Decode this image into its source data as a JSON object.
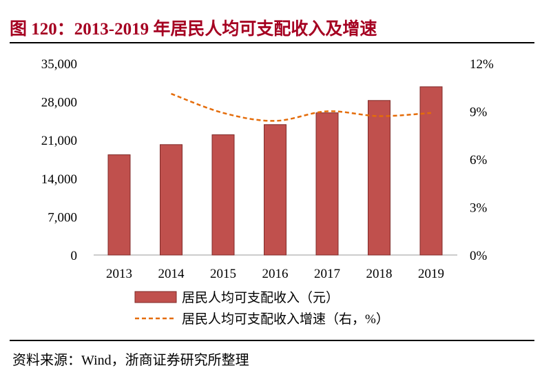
{
  "title": "图 120：2013-2019 年居民人均可支配收入及增速",
  "source": "资料来源：Wind，浙商证券研究所整理",
  "colors": {
    "title": "#A50021",
    "bar": "#C0504D",
    "bar_border": "#7F2A28",
    "line": "#E46C0A"
  },
  "chart_data": {
    "type": "bar+line",
    "categories": [
      "2013",
      "2014",
      "2015",
      "2016",
      "2017",
      "2018",
      "2019"
    ],
    "series": [
      {
        "name": "居民人均可支配收入（元）",
        "type": "bar",
        "axis": "left",
        "values": [
          18311,
          20167,
          21966,
          23821,
          25974,
          28228,
          30733
        ]
      },
      {
        "name": "居民人均可支配收入增速（右，%）",
        "type": "line",
        "style": "dashed",
        "axis": "right",
        "values": [
          null,
          10.1,
          8.9,
          8.4,
          9.0,
          8.7,
          8.9
        ]
      }
    ],
    "y_left": {
      "lim": [
        0,
        35000
      ],
      "ticks": [
        "0",
        "7,000",
        "14,000",
        "21,000",
        "28,000",
        "35,000"
      ]
    },
    "y_right": {
      "lim": [
        0,
        12
      ],
      "ticks": [
        "0%",
        "3%",
        "6%",
        "9%",
        "12%"
      ]
    },
    "grid": false,
    "legend_position": "bottom"
  }
}
